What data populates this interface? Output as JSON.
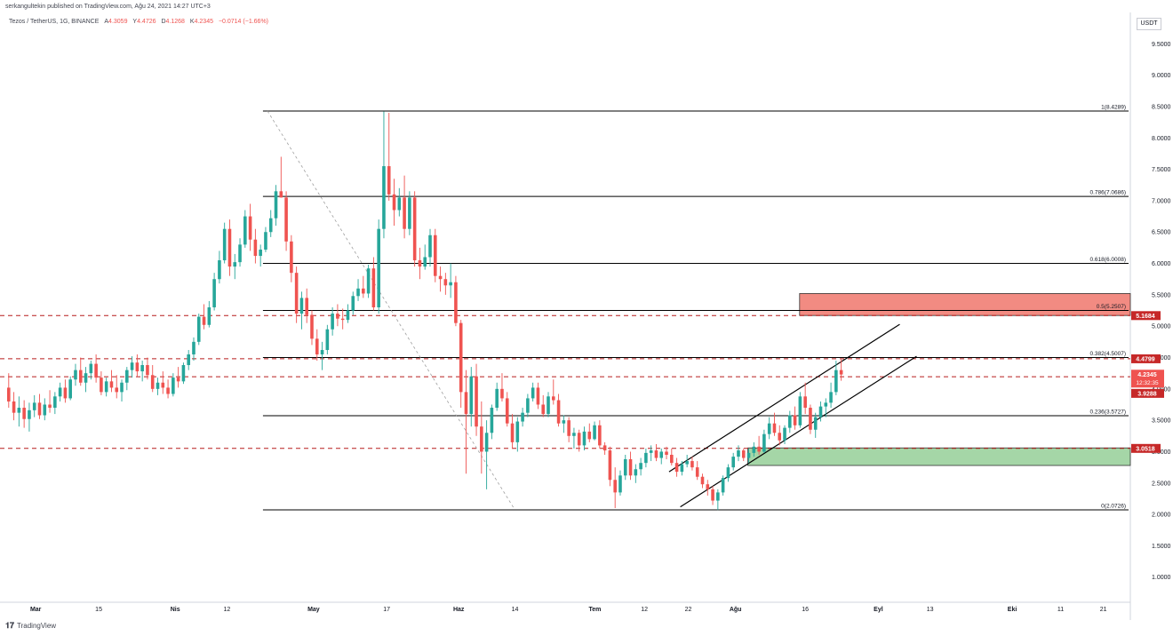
{
  "header": {
    "published": "serkangultekin published on TradingView.com, Ağu 24, 2021 14:27 UTC+3"
  },
  "symbol": {
    "name": "Tezos / TetherUS, 1G, BINANCE",
    "open_label": "A",
    "open": "4.3059",
    "high_label": "Y",
    "high": "4.4726",
    "low_label": "D",
    "low": "4.1268",
    "close_label": "K",
    "close": "4.2345",
    "change": "−0.0714 (−1.66%)"
  },
  "currency": "USDT",
  "footer": {
    "brand": "TradingView"
  },
  "colors": {
    "up": "#26a69a",
    "down": "#ef5350",
    "fib": "#000000",
    "dash": "#b71c1c",
    "resistance_zone": "#f28b82",
    "support_zone": "#a5d6a7"
  },
  "chart_data": {
    "type": "candlestick",
    "ylim": [
      0.6,
      10.0
    ],
    "y_ticks": [
      "1.0000",
      "1.5000",
      "2.0000",
      "2.5000",
      "3.0000",
      "3.5000",
      "4.0000",
      "4.5000",
      "5.0000",
      "5.5000",
      "6.0000",
      "6.5000",
      "7.0000",
      "7.5000",
      "8.0000",
      "8.5000",
      "9.0000",
      "9.5000"
    ],
    "x_ticks": [
      "Mar",
      "15",
      "Nis",
      "12",
      "May",
      "17",
      "Haz",
      "14",
      "Tem",
      "12",
      "22",
      "Ağu",
      "16",
      "Eyl",
      "13",
      "Eki",
      "11",
      "21"
    ],
    "fib_levels": [
      {
        "label": "1(8.4289)",
        "value": 8.4289
      },
      {
        "label": "0.786(7.0686)",
        "value": 7.0686
      },
      {
        "label": "0.618(6.0008)",
        "value": 6.0008
      },
      {
        "label": "0.5(5.2507)",
        "value": 5.2507
      },
      {
        "label": "0.382(4.5007)",
        "value": 4.5007
      },
      {
        "label": "0.236(3.5727)",
        "value": 3.5727
      },
      {
        "label": "0(2.0726)",
        "value": 2.0726
      }
    ],
    "horizontal_levels": [
      {
        "label": "5.1684",
        "value": 5.1684
      },
      {
        "label": "4.4799",
        "value": 4.4799
      },
      {
        "label": "4.1939",
        "value": 4.1939
      },
      {
        "label": "3.0518",
        "value": 3.0518
      }
    ],
    "price_badges": [
      {
        "label": "4.2345",
        "value": 4.2345,
        "sub": "12:32:35"
      },
      {
        "label": "3.9288",
        "value": 3.9288
      }
    ],
    "zones": [
      {
        "type": "resistance",
        "y1": 5.17,
        "y2": 5.52,
        "x1": 0.706,
        "x2": 1.0
      },
      {
        "type": "support",
        "y1": 2.78,
        "y2": 3.06,
        "x1": 0.66,
        "x2": 1.0
      }
    ],
    "channel_lines": [
      {
        "from": [
          0.59,
          2.68
        ],
        "to": [
          0.795,
          5.03
        ]
      },
      {
        "from": [
          0.6,
          2.12
        ],
        "to": [
          0.81,
          4.52
        ]
      }
    ],
    "diagonal_dashed": {
      "from": [
        0.233,
        8.43
      ],
      "to": [
        0.452,
        2.1
      ]
    },
    "candles_ohlc": [
      [
        4.02,
        4.25,
        3.7,
        3.8
      ],
      [
        3.8,
        3.95,
        3.5,
        3.62
      ],
      [
        3.62,
        3.88,
        3.4,
        3.7
      ],
      [
        3.7,
        3.82,
        3.38,
        3.52
      ],
      [
        3.52,
        3.78,
        3.32,
        3.66
      ],
      [
        3.66,
        3.9,
        3.55,
        3.78
      ],
      [
        3.78,
        3.92,
        3.52,
        3.58
      ],
      [
        3.58,
        3.85,
        3.5,
        3.75
      ],
      [
        3.75,
        3.98,
        3.62,
        3.7
      ],
      [
        3.7,
        3.95,
        3.6,
        3.88
      ],
      [
        3.88,
        4.1,
        3.8,
        4.02
      ],
      [
        4.02,
        4.15,
        3.78,
        3.85
      ],
      [
        3.85,
        4.2,
        3.82,
        4.15
      ],
      [
        4.15,
        4.4,
        4.05,
        4.3
      ],
      [
        4.3,
        4.5,
        4.05,
        4.1
      ],
      [
        4.1,
        4.35,
        3.95,
        4.25
      ],
      [
        4.25,
        4.45,
        4.15,
        4.4
      ],
      [
        4.4,
        4.55,
        4.1,
        4.18
      ],
      [
        4.18,
        4.28,
        3.9,
        3.95
      ],
      [
        3.95,
        4.18,
        3.88,
        4.12
      ],
      [
        4.12,
        4.3,
        3.95,
        4.02
      ],
      [
        4.02,
        4.22,
        3.85,
        3.95
      ],
      [
        3.95,
        4.15,
        3.8,
        4.1
      ],
      [
        4.1,
        4.35,
        3.98,
        4.3
      ],
      [
        4.3,
        4.52,
        4.18,
        4.42
      ],
      [
        4.42,
        4.55,
        4.2,
        4.28
      ],
      [
        4.28,
        4.45,
        4.12,
        4.38
      ],
      [
        4.38,
        4.5,
        4.15,
        4.22
      ],
      [
        4.22,
        4.38,
        3.95,
        4.0
      ],
      [
        4.0,
        4.18,
        3.9,
        4.1
      ],
      [
        4.1,
        4.28,
        3.92,
        4.02
      ],
      [
        4.02,
        4.15,
        3.85,
        3.92
      ],
      [
        3.92,
        4.25,
        3.88,
        4.18
      ],
      [
        4.18,
        4.35,
        4.02,
        4.12
      ],
      [
        4.12,
        4.42,
        4.08,
        4.38
      ],
      [
        4.38,
        4.62,
        4.3,
        4.55
      ],
      [
        4.55,
        4.82,
        4.45,
        4.75
      ],
      [
        4.75,
        5.2,
        4.7,
        5.15
      ],
      [
        5.15,
        5.35,
        4.95,
        5.02
      ],
      [
        5.02,
        5.4,
        4.98,
        5.3
      ],
      [
        5.3,
        5.85,
        5.25,
        5.75
      ],
      [
        5.75,
        6.2,
        5.68,
        6.05
      ],
      [
        6.05,
        6.65,
        6.0,
        6.55
      ],
      [
        6.55,
        6.7,
        5.8,
        5.95
      ],
      [
        5.95,
        6.15,
        5.75,
        6.02
      ],
      [
        6.02,
        6.4,
        5.95,
        6.3
      ],
      [
        6.3,
        6.85,
        6.25,
        6.75
      ],
      [
        6.75,
        6.95,
        6.2,
        6.38
      ],
      [
        6.38,
        6.55,
        6.0,
        6.12
      ],
      [
        6.12,
        6.3,
        5.95,
        6.22
      ],
      [
        6.22,
        6.58,
        6.18,
        6.5
      ],
      [
        6.5,
        6.85,
        6.42,
        6.72
      ],
      [
        6.72,
        7.25,
        6.6,
        7.15
      ],
      [
        7.15,
        7.7,
        7.05,
        7.05
      ],
      [
        7.05,
        7.15,
        6.2,
        6.35
      ],
      [
        6.35,
        6.45,
        5.7,
        5.85
      ],
      [
        5.85,
        5.95,
        5.05,
        5.2
      ],
      [
        5.2,
        5.55,
        4.95,
        5.45
      ],
      [
        5.45,
        5.6,
        5.05,
        5.18
      ],
      [
        5.18,
        5.25,
        4.7,
        4.8
      ],
      [
        4.8,
        4.95,
        4.45,
        4.55
      ],
      [
        4.55,
        4.75,
        4.3,
        4.62
      ],
      [
        4.62,
        5.02,
        4.55,
        4.95
      ],
      [
        4.95,
        5.3,
        4.85,
        5.2
      ],
      [
        5.2,
        5.35,
        5.0,
        5.12
      ],
      [
        5.12,
        5.28,
        4.95,
        5.1
      ],
      [
        5.1,
        5.35,
        5.05,
        5.25
      ],
      [
        5.25,
        5.55,
        5.18,
        5.48
      ],
      [
        5.48,
        5.75,
        5.4,
        5.6
      ],
      [
        5.6,
        5.8,
        5.45,
        5.52
      ],
      [
        5.52,
        5.98,
        5.45,
        5.92
      ],
      [
        5.92,
        6.1,
        5.25,
        5.3
      ],
      [
        5.3,
        6.7,
        5.2,
        6.55
      ],
      [
        6.55,
        8.42,
        6.4,
        7.55
      ],
      [
        7.55,
        8.4,
        7.0,
        7.1
      ],
      [
        7.1,
        7.35,
        6.6,
        6.85
      ],
      [
        6.85,
        7.2,
        6.75,
        7.05
      ],
      [
        7.05,
        7.4,
        6.4,
        6.55
      ],
      [
        6.55,
        7.15,
        6.45,
        7.05
      ],
      [
        7.05,
        7.15,
        5.95,
        6.05
      ],
      [
        6.05,
        6.25,
        5.75,
        5.95
      ],
      [
        5.95,
        6.3,
        5.9,
        6.1
      ],
      [
        6.1,
        6.55,
        5.95,
        6.45
      ],
      [
        6.45,
        6.55,
        5.7,
        5.8
      ],
      [
        5.8,
        5.95,
        5.55,
        5.75
      ],
      [
        5.75,
        5.85,
        5.5,
        5.65
      ],
      [
        5.65,
        6.0,
        5.45,
        5.7
      ],
      [
        5.7,
        5.8,
        5.0,
        5.05
      ],
      [
        5.05,
        5.1,
        3.7,
        3.95
      ],
      [
        3.95,
        4.3,
        2.65,
        3.6
      ],
      [
        3.6,
        4.35,
        3.4,
        4.2
      ],
      [
        4.2,
        4.4,
        3.25,
        3.4
      ],
      [
        3.4,
        3.8,
        2.65,
        3.0
      ],
      [
        3.0,
        3.5,
        2.4,
        3.3
      ],
      [
        3.3,
        3.75,
        3.2,
        3.7
      ],
      [
        3.7,
        4.1,
        3.65,
        4.0
      ],
      [
        4.0,
        4.25,
        3.8,
        3.85
      ],
      [
        3.85,
        3.95,
        3.4,
        3.45
      ],
      [
        3.45,
        3.6,
        3.05,
        3.15
      ],
      [
        3.15,
        3.55,
        3.0,
        3.48
      ],
      [
        3.48,
        3.7,
        3.4,
        3.62
      ],
      [
        3.62,
        3.92,
        3.55,
        3.85
      ],
      [
        3.85,
        4.1,
        3.8,
        4.02
      ],
      [
        4.02,
        4.1,
        3.68,
        3.75
      ],
      [
        3.75,
        3.9,
        3.55,
        3.6
      ],
      [
        3.6,
        3.95,
        3.55,
        3.88
      ],
      [
        3.88,
        4.15,
        3.75,
        3.82
      ],
      [
        3.82,
        3.92,
        3.4,
        3.45
      ],
      [
        3.45,
        3.58,
        3.3,
        3.5
      ],
      [
        3.5,
        3.55,
        3.15,
        3.25
      ],
      [
        3.25,
        3.38,
        3.05,
        3.3
      ],
      [
        3.3,
        3.35,
        3.0,
        3.1
      ],
      [
        3.1,
        3.4,
        3.02,
        3.32
      ],
      [
        3.32,
        3.45,
        3.15,
        3.2
      ],
      [
        3.2,
        3.48,
        3.18,
        3.42
      ],
      [
        3.42,
        3.5,
        3.05,
        3.1
      ],
      [
        3.1,
        3.15,
        2.95,
        3.02
      ],
      [
        3.02,
        3.08,
        2.45,
        2.55
      ],
      [
        2.55,
        2.75,
        2.1,
        2.35
      ],
      [
        2.35,
        2.7,
        2.3,
        2.62
      ],
      [
        2.62,
        2.95,
        2.55,
        2.88
      ],
      [
        2.88,
        3.0,
        2.55,
        2.62
      ],
      [
        2.62,
        2.8,
        2.5,
        2.72
      ],
      [
        2.72,
        2.9,
        2.62,
        2.82
      ],
      [
        2.82,
        3.05,
        2.75,
        2.98
      ],
      [
        2.98,
        3.1,
        2.85,
        3.02
      ],
      [
        3.02,
        3.12,
        2.85,
        2.9
      ],
      [
        2.9,
        3.05,
        2.8,
        3.0
      ],
      [
        3.0,
        3.08,
        2.88,
        2.95
      ],
      [
        2.95,
        3.05,
        2.78,
        2.82
      ],
      [
        2.82,
        2.9,
        2.6,
        2.68
      ],
      [
        2.68,
        2.85,
        2.62,
        2.8
      ],
      [
        2.8,
        2.95,
        2.75,
        2.85
      ],
      [
        2.85,
        2.92,
        2.7,
        2.75
      ],
      [
        2.75,
        2.85,
        2.55,
        2.6
      ],
      [
        2.6,
        2.65,
        2.42,
        2.48
      ],
      [
        2.48,
        2.55,
        2.3,
        2.4
      ],
      [
        2.4,
        2.45,
        2.15,
        2.22
      ],
      [
        2.22,
        2.4,
        2.07,
        2.35
      ],
      [
        2.35,
        2.62,
        2.3,
        2.58
      ],
      [
        2.58,
        2.8,
        2.52,
        2.75
      ],
      [
        2.75,
        2.98,
        2.7,
        2.92
      ],
      [
        2.92,
        3.1,
        2.85,
        3.02
      ],
      [
        3.02,
        3.05,
        2.85,
        2.9
      ],
      [
        2.9,
        3.05,
        2.82,
        2.98
      ],
      [
        2.98,
        3.15,
        2.92,
        3.08
      ],
      [
        3.08,
        3.25,
        2.95,
        3.0
      ],
      [
        3.0,
        3.35,
        2.98,
        3.28
      ],
      [
        3.28,
        3.55,
        3.2,
        3.45
      ],
      [
        3.45,
        3.62,
        3.25,
        3.3
      ],
      [
        3.3,
        3.42,
        3.1,
        3.18
      ],
      [
        3.18,
        3.42,
        3.12,
        3.38
      ],
      [
        3.38,
        3.65,
        3.3,
        3.58
      ],
      [
        3.58,
        3.72,
        3.35,
        3.42
      ],
      [
        3.42,
        3.95,
        3.38,
        3.88
      ],
      [
        3.88,
        4.1,
        3.6,
        3.7
      ],
      [
        3.7,
        3.75,
        3.28,
        3.35
      ],
      [
        3.35,
        3.62,
        3.22,
        3.55
      ],
      [
        3.55,
        3.8,
        3.48,
        3.72
      ],
      [
        3.72,
        3.85,
        3.55,
        3.78
      ],
      [
        3.78,
        4.1,
        3.7,
        3.95
      ],
      [
        3.95,
        4.45,
        3.9,
        4.3
      ],
      [
        4.3,
        4.47,
        4.13,
        4.23
      ]
    ]
  }
}
